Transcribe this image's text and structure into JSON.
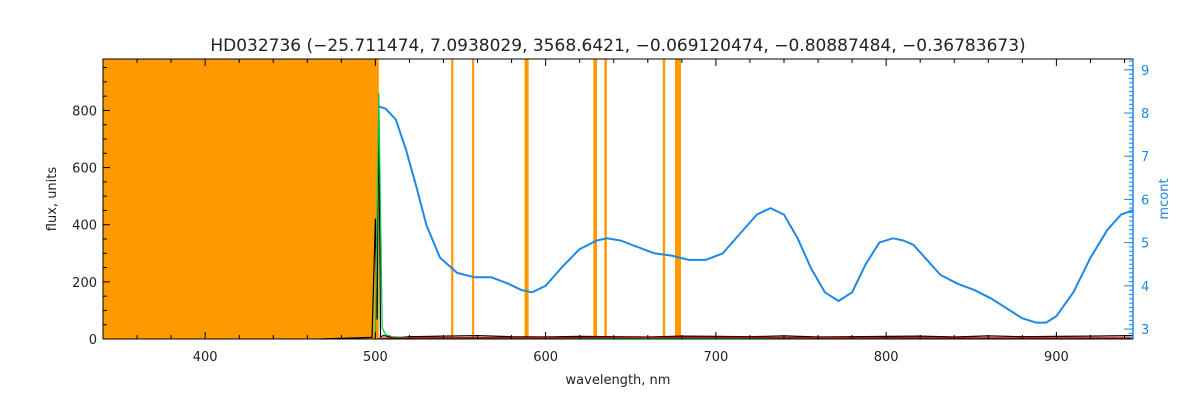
{
  "chart_data": {
    "type": "line",
    "title": "HD032736    (−25.711474, 7.0938029, 3568.6421, −0.069120474, −0.80887484, −0.36783673)",
    "xlabel": "wavelength, nm",
    "ylabel": "flux, units",
    "y2label": "mcont",
    "xlim": [
      340,
      945
    ],
    "ylim": [
      0,
      980
    ],
    "y2lim": [
      2.77,
      9.25
    ],
    "x_ticks": [
      400,
      500,
      600,
      700,
      800,
      900
    ],
    "y_ticks": [
      0,
      200,
      400,
      600,
      800
    ],
    "y2_ticks": [
      3,
      4,
      5,
      6,
      7,
      8,
      9
    ],
    "grid": false,
    "masked_region": {
      "x": [
        340,
        502
      ],
      "color": "#ff9900"
    },
    "masked_lines": [
      {
        "x": [
          544.5,
          545.8
        ]
      },
      {
        "x": [
          556.8,
          558.0
        ]
      },
      {
        "x": [
          587.6,
          590.0
        ]
      },
      {
        "x": [
          628.0,
          630.2
        ]
      },
      {
        "x": [
          634.5,
          636.0
        ]
      },
      {
        "x": [
          668.8,
          670.2
        ]
      },
      {
        "x": [
          676.0,
          679.5
        ]
      }
    ],
    "series": [
      {
        "color": "#000000",
        "axis": "left",
        "x": [
          468,
          480,
          490,
          498,
          500,
          501,
          502,
          503,
          505,
          510,
          520,
          540,
          560,
          580,
          600,
          620,
          640,
          660,
          680,
          700,
          720,
          740,
          760,
          780,
          800,
          820,
          840,
          860,
          880,
          900,
          920,
          945
        ],
        "y": [
          0,
          2,
          4,
          6,
          420,
          70,
          845,
          8,
          12,
          5,
          8,
          10,
          12,
          8,
          7,
          9,
          8,
          7,
          10,
          9,
          8,
          11,
          7,
          8,
          9,
          10,
          7,
          11,
          8,
          9,
          10,
          12
        ]
      },
      {
        "color": "#00cc44",
        "axis": "left",
        "x": [
          500,
          502,
          504,
          506,
          510,
          520,
          560,
          600,
          700,
          800,
          900,
          945
        ],
        "y": [
          0,
          860,
          40,
          15,
          8,
          5,
          4,
          4,
          3,
          3,
          3,
          3
        ]
      },
      {
        "color": "#cc0000",
        "axis": "left",
        "x": [
          502,
          520,
          560,
          600,
          650,
          700,
          750,
          800,
          850,
          900,
          945
        ],
        "y": [
          3,
          4,
          5,
          5,
          6,
          6,
          5,
          5,
          4,
          4,
          4
        ]
      },
      {
        "color": "#1e88e5",
        "axis": "right",
        "x": [
          502,
          506,
          512,
          518,
          524,
          530,
          538,
          548,
          558,
          568,
          578,
          586,
          592,
          600,
          610,
          620,
          630,
          636,
          644,
          654,
          664,
          674,
          684,
          694,
          704,
          714,
          724,
          732,
          740,
          748,
          756,
          764,
          772,
          780,
          788,
          796,
          804,
          810,
          816,
          824,
          832,
          842,
          852,
          862,
          872,
          880,
          888,
          894,
          900,
          910,
          920,
          930,
          938,
          945
        ],
        "y": [
          8.15,
          8.1,
          7.85,
          7.15,
          6.3,
          5.4,
          4.65,
          4.3,
          4.2,
          4.2,
          4.05,
          3.9,
          3.85,
          4.0,
          4.45,
          4.85,
          5.05,
          5.1,
          5.05,
          4.9,
          4.75,
          4.7,
          4.6,
          4.6,
          4.75,
          5.2,
          5.65,
          5.8,
          5.65,
          5.1,
          4.4,
          3.85,
          3.65,
          3.85,
          4.5,
          5.0,
          5.1,
          5.05,
          4.95,
          4.6,
          4.25,
          4.05,
          3.9,
          3.7,
          3.45,
          3.25,
          3.15,
          3.15,
          3.3,
          3.85,
          4.65,
          5.3,
          5.65,
          5.75
        ]
      }
    ]
  }
}
